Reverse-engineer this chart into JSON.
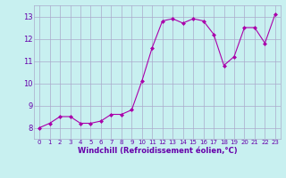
{
  "x": [
    0,
    1,
    2,
    3,
    4,
    5,
    6,
    7,
    8,
    9,
    10,
    11,
    12,
    13,
    14,
    15,
    16,
    17,
    18,
    19,
    20,
    21,
    22,
    23
  ],
  "y": [
    8.0,
    8.2,
    8.5,
    8.5,
    8.2,
    8.2,
    8.3,
    8.6,
    8.6,
    8.8,
    10.1,
    11.6,
    12.8,
    12.9,
    12.7,
    12.9,
    12.8,
    12.2,
    10.8,
    11.2,
    12.5,
    12.5,
    11.8,
    13.1
  ],
  "line_color": "#aa00aa",
  "marker": "D",
  "marker_size": 2.0,
  "bg_color": "#c8f0f0",
  "grid_color": "#aaaacc",
  "xlabel": "Windchill (Refroidissement éolien,°C)",
  "xlabel_color": "#6600aa",
  "tick_color": "#6600aa",
  "xlim": [
    -0.5,
    23.5
  ],
  "ylim": [
    7.5,
    13.5
  ],
  "yticks": [
    8,
    9,
    10,
    11,
    12,
    13
  ],
  "xticks": [
    0,
    1,
    2,
    3,
    4,
    5,
    6,
    7,
    8,
    9,
    10,
    11,
    12,
    13,
    14,
    15,
    16,
    17,
    18,
    19,
    20,
    21,
    22,
    23
  ]
}
